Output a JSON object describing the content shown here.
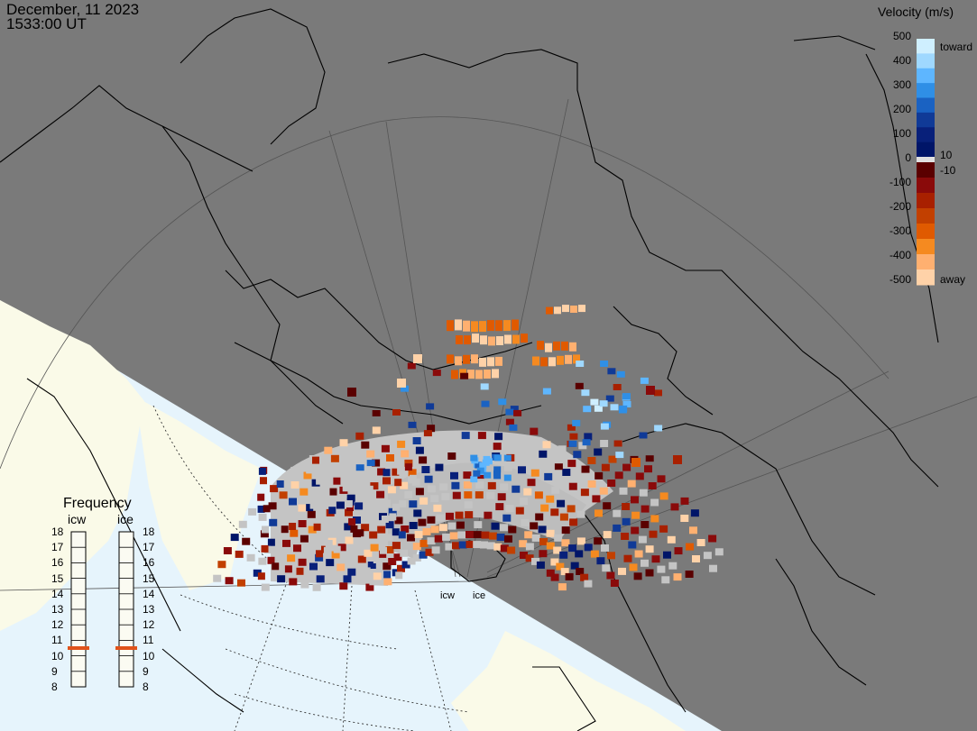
{
  "header": {
    "date": "December, 11 2023",
    "time": "1533:00 UT"
  },
  "velocity_scale": {
    "title": "Velocity (m/s)",
    "ticks": [
      "500",
      "400",
      "300",
      "200",
      "100",
      "0",
      "-100",
      "-200",
      "-300",
      "-400",
      "-500"
    ],
    "toward_label": "toward",
    "away_label": "away",
    "pos_threshold": "10",
    "neg_threshold": "-10",
    "toward_colors": [
      "#cfefff",
      "#9fd8ff",
      "#5eb6ff",
      "#2f8fe6",
      "#1a62c2",
      "#103a97",
      "#08207a",
      "#001568"
    ],
    "away_colors": [
      "#5a0000",
      "#8a0a0a",
      "#a82000",
      "#c24000",
      "#e05a00",
      "#f58a20",
      "#ffb070",
      "#ffd2a8"
    ]
  },
  "frequency_panel": {
    "title": "Frequency",
    "radars": [
      "icw",
      "ice"
    ],
    "ticks": [
      "18",
      "17",
      "16",
      "15",
      "14",
      "13",
      "12",
      "11",
      "10",
      "9",
      "8"
    ],
    "selected": [
      {
        "radar": "icw",
        "mhz": 10.5
      },
      {
        "radar": "ice",
        "mhz": 10.5
      }
    ],
    "marker_color": "#e0521a"
  },
  "radars": {
    "labels": [
      "icw",
      "ice"
    ]
  },
  "map_colors": {
    "ocean": "#7a7a7a",
    "daylight_land": "#fafae8",
    "daylight_ocean": "#e6f4fc",
    "ground_scatter": "#c4c4c4",
    "coastline": "#000000",
    "grid": "#555555"
  }
}
